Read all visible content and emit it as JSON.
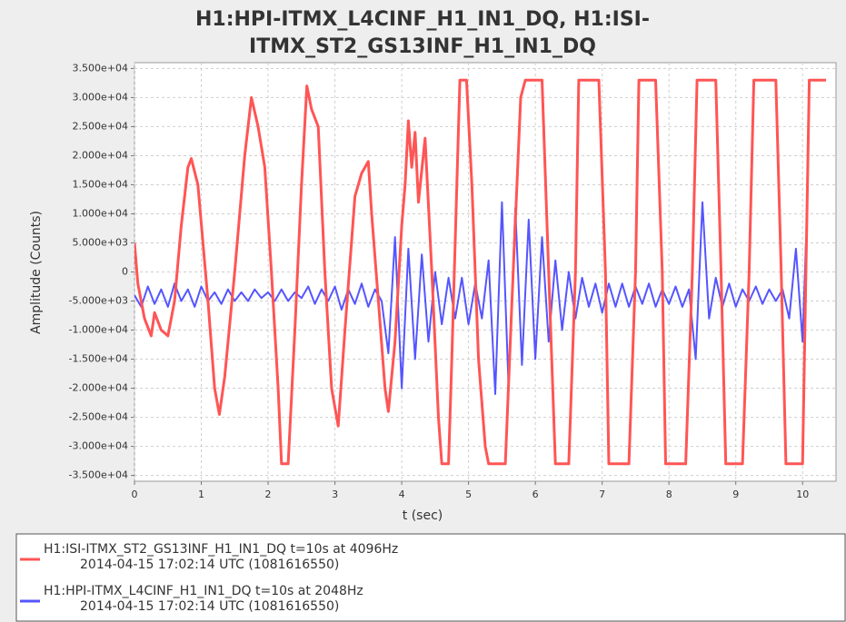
{
  "chart_data": {
    "type": "line",
    "title": "H1:HPI-ITMX_L4CINF_H1_IN1_DQ, H1:ISI-ITMX_ST2_GS13INF_H1_IN1_DQ",
    "title_lines": [
      "H1:HPI-ITMX_L4CINF_H1_IN1_DQ, H1:ISI-",
      "ITMX_ST2_GS13INF_H1_IN1_DQ"
    ],
    "xlabel": "t (sec)",
    "ylabel": "Amplitude (Counts)",
    "xlim": [
      0,
      10.5
    ],
    "xticks": [
      0,
      1,
      2,
      3,
      4,
      5,
      6,
      7,
      8,
      9,
      10
    ],
    "ylim": [
      -36000,
      36000
    ],
    "yticks": [
      {
        "value": -35000,
        "label": "-3.500e+04"
      },
      {
        "value": -30000,
        "label": "-3.000e+04"
      },
      {
        "value": -25000,
        "label": "-2.500e+04"
      },
      {
        "value": -20000,
        "label": "-2.000e+04"
      },
      {
        "value": -15000,
        "label": "-1.500e+04"
      },
      {
        "value": -10000,
        "label": "-1.000e+04"
      },
      {
        "value": -5000,
        "label": "-5.000e+03"
      },
      0,
      {
        "value": 5000,
        "label": "5.000e+03"
      },
      {
        "value": 10000,
        "label": "1.000e+04"
      },
      {
        "value": 15000,
        "label": "1.500e+04"
      },
      {
        "value": 20000,
        "label": "2.000e+04"
      },
      {
        "value": 25000,
        "label": "2.500e+04"
      },
      {
        "value": 30000,
        "label": "3.000e+04"
      },
      {
        "value": 35000,
        "label": "3.500e+04"
      }
    ],
    "grid": true,
    "series": [
      {
        "name": "H1:ISI-ITMX_ST2_GS13INF_H1_IN1_DQ t=10s at 4096Hz",
        "description": "2014-04-15 17:02:14 UTC (1081616550)",
        "color": "#ff5555",
        "x": [
          0,
          0.05,
          0.15,
          0.25,
          0.3,
          0.4,
          0.5,
          0.6,
          0.7,
          0.8,
          0.85,
          0.95,
          1.1,
          1.2,
          1.27,
          1.35,
          1.5,
          1.65,
          1.75,
          1.85,
          1.95,
          2.05,
          2.15,
          2.2,
          2.3,
          2.4,
          2.5,
          2.58,
          2.65,
          2.75,
          2.85,
          2.95,
          3.05,
          3.15,
          3.3,
          3.4,
          3.5,
          3.55,
          3.65,
          3.75,
          3.8,
          3.9,
          4.0,
          4.05,
          4.1,
          4.15,
          4.2,
          4.25,
          4.35,
          4.45,
          4.55,
          4.6,
          4.7,
          4.75,
          4.85,
          4.87,
          4.97,
          5.05,
          5.15,
          5.25,
          5.3,
          5.55,
          5.65,
          5.78,
          5.85,
          6.1,
          6.2,
          6.3,
          6.5,
          6.6,
          6.65,
          6.95,
          7.05,
          7.1,
          7.4,
          7.5,
          7.55,
          7.8,
          7.9,
          7.95,
          8.25,
          8.35,
          8.42,
          8.7,
          8.78,
          8.85,
          9.1,
          9.2,
          9.27,
          9.6,
          9.68,
          9.75,
          10.0,
          10.05,
          10.1,
          10.35
        ],
        "values": [
          5000,
          -2000,
          -8000,
          -11000,
          -7000,
          -10000,
          -11000,
          -5000,
          8000,
          18000,
          19500,
          15000,
          -5000,
          -20000,
          -24500,
          -18000,
          0,
          20000,
          30000,
          25000,
          18000,
          0,
          -20000,
          -33000,
          -33000,
          -10000,
          15000,
          32000,
          28000,
          25000,
          0,
          -20000,
          -26500,
          -10000,
          13000,
          17000,
          19000,
          10000,
          -5000,
          -20000,
          -24000,
          -12000,
          8000,
          15000,
          26000,
          18000,
          24000,
          12000,
          23000,
          0,
          -25000,
          -33000,
          -33000,
          -15000,
          25000,
          33000,
          33000,
          15000,
          -15000,
          -30000,
          -33000,
          -33000,
          -5000,
          30000,
          33000,
          33000,
          0,
          -33000,
          -33000,
          0,
          33000,
          33000,
          0,
          -33000,
          -33000,
          0,
          33000,
          33000,
          0,
          -33000,
          -33000,
          0,
          33000,
          33000,
          0,
          -33000,
          -33000,
          0,
          33000,
          33000,
          0,
          -33000,
          -33000,
          0,
          33000,
          33000
        ]
      },
      {
        "name": "H1:HPI-ITMX_L4CINF_H1_IN1_DQ t=10s at 2048Hz",
        "description": "2014-04-15 17:02:14 UTC (1081616550)",
        "color": "#5555ff",
        "x": [
          0,
          0.1,
          0.2,
          0.3,
          0.4,
          0.5,
          0.6,
          0.7,
          0.8,
          0.9,
          1.0,
          1.1,
          1.2,
          1.3,
          1.4,
          1.5,
          1.6,
          1.7,
          1.8,
          1.9,
          2.0,
          2.1,
          2.2,
          2.3,
          2.4,
          2.5,
          2.6,
          2.7,
          2.8,
          2.9,
          3.0,
          3.1,
          3.2,
          3.3,
          3.4,
          3.5,
          3.6,
          3.7,
          3.8,
          3.9,
          4.0,
          4.1,
          4.2,
          4.3,
          4.4,
          4.5,
          4.6,
          4.7,
          4.8,
          4.9,
          5.0,
          5.1,
          5.2,
          5.3,
          5.4,
          5.5,
          5.6,
          5.7,
          5.8,
          5.9,
          6.0,
          6.1,
          6.2,
          6.3,
          6.4,
          6.5,
          6.6,
          6.7,
          6.8,
          6.9,
          7.0,
          7.1,
          7.2,
          7.3,
          7.4,
          7.5,
          7.6,
          7.7,
          7.8,
          7.9,
          8.0,
          8.1,
          8.2,
          8.3,
          8.4,
          8.5,
          8.6,
          8.7,
          8.8,
          8.9,
          9.0,
          9.1,
          9.2,
          9.3,
          9.4,
          9.5,
          9.6,
          9.7,
          9.8,
          9.9,
          10.0,
          10.05
        ],
        "values": [
          -4000,
          -6000,
          -2500,
          -5500,
          -3000,
          -6000,
          -2000,
          -5000,
          -3000,
          -6000,
          -2500,
          -5000,
          -3500,
          -5500,
          -3000,
          -5000,
          -3500,
          -5000,
          -3000,
          -4500,
          -3500,
          -5000,
          -3000,
          -5000,
          -3500,
          -4500,
          -2500,
          -5500,
          -3000,
          -5000,
          -2500,
          -6500,
          -3000,
          -5500,
          -2000,
          -6000,
          -3000,
          -5000,
          -14000,
          6000,
          -20000,
          4000,
          -15000,
          3000,
          -12000,
          0,
          -9000,
          -1000,
          -8000,
          -1000,
          -9000,
          -2000,
          -8000,
          2000,
          -21000,
          12000,
          -20000,
          11000,
          -16000,
          9000,
          -15000,
          6000,
          -12000,
          2000,
          -10000,
          0,
          -8000,
          -1000,
          -6000,
          -2000,
          -7000,
          -2000,
          -6000,
          -2000,
          -6000,
          -2500,
          -5500,
          -2000,
          -6000,
          -3000,
          -5500,
          -2500,
          -6000,
          -3000,
          -15000,
          12000,
          -8000,
          -1000,
          -6000,
          -2000,
          -6000,
          -3000,
          -5000,
          -2500,
          -5500,
          -3000,
          -5000,
          -3000,
          -8000,
          4000,
          -12000,
          5000
        ]
      }
    ]
  }
}
